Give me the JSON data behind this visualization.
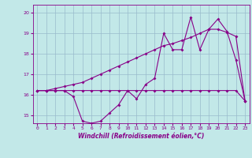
{
  "xlabel": "Windchill (Refroidissement éolien,°C)",
  "bg_color": "#c2e8e8",
  "line_color": "#880088",
  "grid_color": "#99bbcc",
  "x_ticks": [
    0,
    1,
    2,
    3,
    4,
    5,
    6,
    7,
    8,
    9,
    10,
    11,
    12,
    13,
    14,
    15,
    16,
    17,
    18,
    19,
    20,
    21,
    22,
    23
  ],
  "y_ticks": [
    15,
    16,
    17,
    18,
    19,
    20
  ],
  "ylim": [
    14.6,
    20.4
  ],
  "xlim": [
    -0.5,
    23.5
  ],
  "temp_line": [
    16.2,
    16.2,
    16.2,
    16.2,
    16.2,
    16.2,
    16.2,
    16.2,
    16.2,
    16.2,
    16.2,
    16.2,
    16.2,
    16.2,
    16.2,
    16.2,
    16.2,
    16.2,
    16.2,
    16.2,
    16.2,
    16.2,
    16.2,
    15.7
  ],
  "windchill_line": [
    16.2,
    16.2,
    16.2,
    16.2,
    15.9,
    14.7,
    14.6,
    14.7,
    15.1,
    15.5,
    16.2,
    15.8,
    16.5,
    16.8,
    19.0,
    18.2,
    18.2,
    19.8,
    18.2,
    19.2,
    19.7,
    19.1,
    17.7,
    15.7
  ],
  "smooth_line": [
    16.2,
    16.2,
    16.3,
    16.4,
    16.5,
    16.6,
    16.8,
    17.0,
    17.2,
    17.4,
    17.6,
    17.8,
    18.0,
    18.2,
    18.4,
    18.5,
    18.65,
    18.8,
    19.0,
    19.2,
    19.2,
    19.05,
    18.85,
    15.7
  ]
}
